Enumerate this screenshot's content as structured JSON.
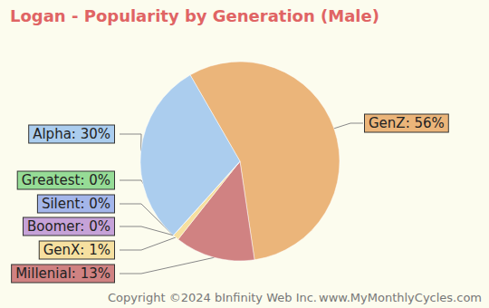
{
  "chart_data": {
    "type": "pie",
    "title": "Logan - Popularity by Generation (Male)",
    "categories": [
      "GenZ",
      "Millenial",
      "GenX",
      "Boomer",
      "Silent",
      "Greatest",
      "Alpha"
    ],
    "values": [
      56,
      13,
      1,
      0,
      0,
      0,
      30
    ],
    "value_labels": [
      "GenZ: 56%",
      "Millenial: 13%",
      "GenX: 1%",
      "Boomer: 0%",
      "Silent: 0%",
      "Greatest: 0%",
      "Alpha: 30%"
    ],
    "colors": [
      "#ebb57a",
      "#d08282",
      "#f6e0a0",
      "#c6a2d8",
      "#a4b6ea",
      "#96dc96",
      "#abcdee"
    ],
    "data_labels": true,
    "annotations": [
      "Copyright ©2024 bInfinity Web Inc.",
      "www.MyMonthlyCycles.com"
    ]
  }
}
